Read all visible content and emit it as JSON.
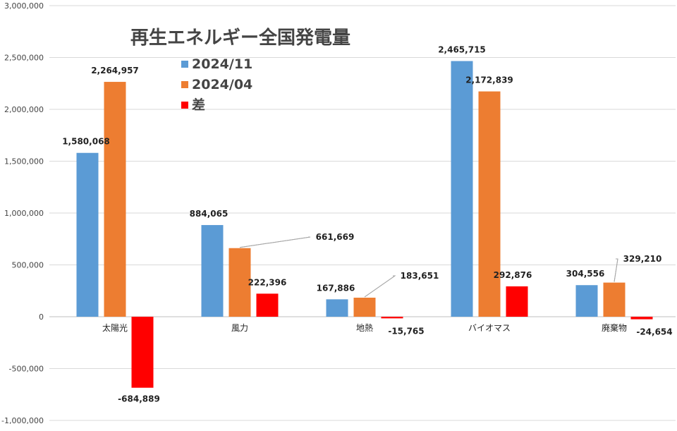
{
  "chart_data": {
    "type": "bar",
    "title": "再生エネルギー全国発電量",
    "categories": [
      "太陽光",
      "風力",
      "地熱",
      "バイオマス",
      "廃棄物"
    ],
    "series": [
      {
        "name": "2024/11",
        "color": "#5b9bd5",
        "values": [
          1580068,
          884065,
          167886,
          2465715,
          304556
        ],
        "labels": [
          "1,580,068",
          "884,065",
          "167,886",
          "2,465,715",
          "304,556"
        ]
      },
      {
        "name": "2024/04",
        "color": "#ed7d31",
        "values": [
          2264957,
          661669,
          183651,
          2172839,
          329210
        ],
        "labels": [
          "2,264,957",
          "661,669",
          "183,651",
          "2,172,839",
          "329,210"
        ]
      },
      {
        "name": "差",
        "color": "#ff0000",
        "values": [
          -684889,
          222396,
          -15765,
          292876,
          -24654
        ],
        "labels": [
          "-684,889",
          "222,396",
          "-15,765",
          "292,876",
          "-24,654"
        ]
      }
    ],
    "ylim": [
      -1000000,
      3000000
    ],
    "yticks": [
      {
        "value": 3000000,
        "label": "3,000,000"
      },
      {
        "value": 2500000,
        "label": "2,500,000"
      },
      {
        "value": 2000000,
        "label": "2,000,000"
      },
      {
        "value": 1500000,
        "label": "1,500,000"
      },
      {
        "value": 1000000,
        "label": "1,000,000"
      },
      {
        "value": 500000,
        "label": "500,000"
      },
      {
        "value": 0,
        "label": "0"
      },
      {
        "value": -500000,
        "label": "-500,000"
      },
      {
        "value": -1000000,
        "label": "-1,000,000"
      }
    ],
    "grid": true,
    "legend": "top-left"
  }
}
